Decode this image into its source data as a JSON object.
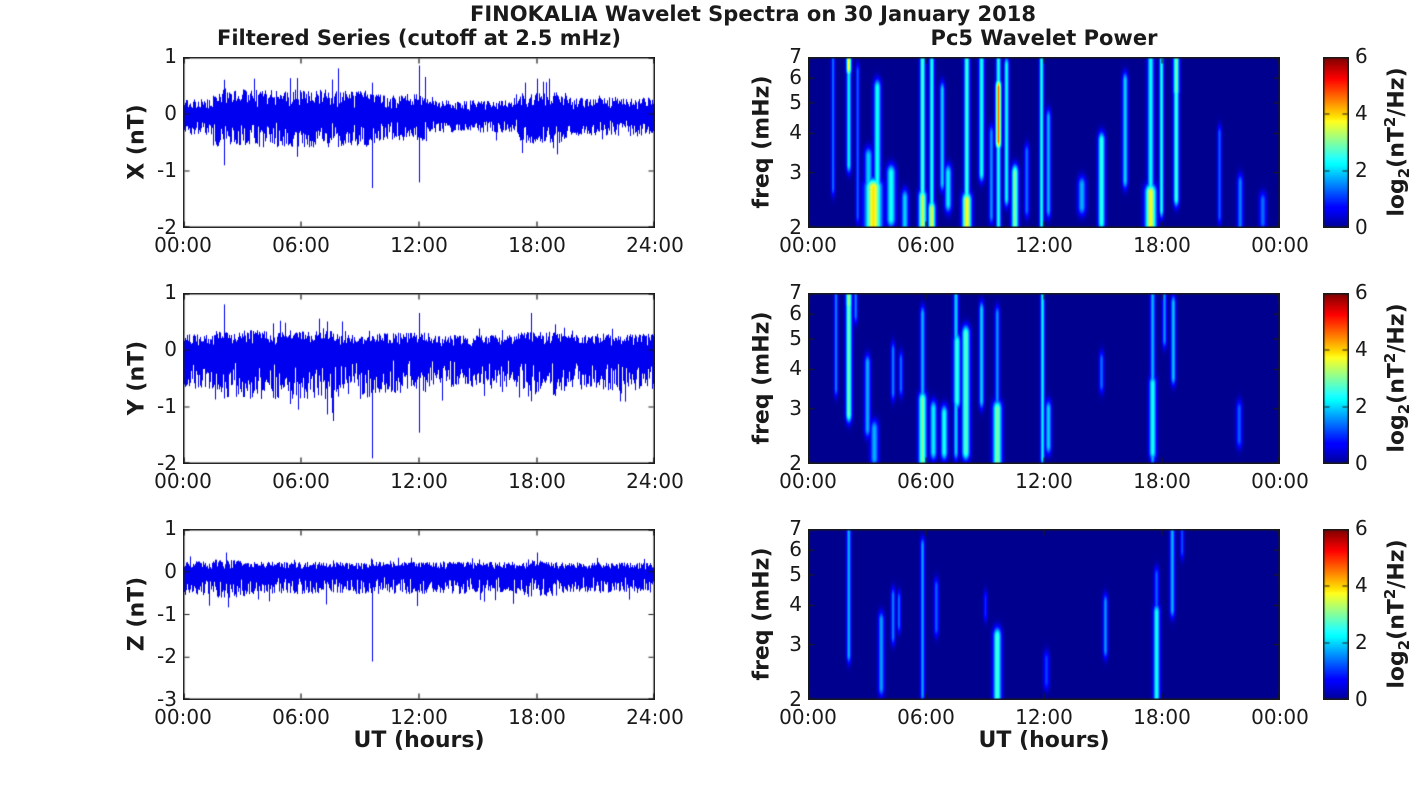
{
  "title": "FINOKALIA Wavelet Spectra on 30 January 2018",
  "colors": {
    "series_line": "#0000F0",
    "axis": "#1a1a1a",
    "text": "#1a1a1a",
    "background": "#ffffff",
    "heat_background_jet0": "#00008F",
    "colormap": "jet"
  },
  "left_column": {
    "title": "Filtered Series (cutoff at 2.5 mHz)",
    "xlabel": "UT (hours)"
  },
  "right_column": {
    "title": "Pc5 Wavelet Power",
    "xlabel": "UT (hours)",
    "colorbar": {
      "ticks": [
        6,
        4,
        2,
        0
      ],
      "clim": [
        0,
        6
      ]
    },
    "colorbar_label": {
      "pre": "log",
      "sub": "2",
      "mid": "(nT",
      "sup": "2",
      "post": "/Hz)"
    }
  },
  "chart_data": [
    {
      "id": "x_series",
      "type": "line",
      "ylabel": "X (nT)",
      "ylim": [
        -2,
        1
      ],
      "xlim_hours": [
        0,
        24
      ],
      "x_ticks": [
        "00:00",
        "06:00",
        "12:00",
        "18:00",
        "24:00"
      ],
      "y_ticks": [
        1,
        0,
        -1,
        -2
      ],
      "noise": {
        "amp_pos": 0.22,
        "amp_neg": 0.3,
        "envelope": [
          [
            0,
            1.5,
            0.85
          ],
          [
            1.5,
            9.5,
            1.35
          ],
          [
            9.5,
            12.5,
            1.1
          ],
          [
            12.5,
            17,
            0.75
          ],
          [
            17,
            19.5,
            1.2
          ],
          [
            19.5,
            24.01,
            0.9
          ]
        ]
      },
      "spikes": [
        [
          2.1,
          0.6
        ],
        [
          2.1,
          -0.9
        ],
        [
          3.6,
          0.62
        ],
        [
          5.8,
          0.63
        ],
        [
          5.8,
          -0.75
        ],
        [
          7.9,
          0.8
        ],
        [
          9.6,
          0.55
        ],
        [
          9.6,
          -1.3
        ],
        [
          12.0,
          0.85
        ],
        [
          12.0,
          -1.2
        ],
        [
          12.3,
          0.65
        ],
        [
          17.4,
          0.55
        ],
        [
          18.0,
          0.62
        ],
        [
          18.6,
          0.62
        ],
        [
          18.8,
          -0.6
        ]
      ]
    },
    {
      "id": "y_series",
      "type": "line",
      "ylabel": "Y (nT)",
      "ylim": [
        -2,
        1
      ],
      "xlim_hours": [
        0,
        24
      ],
      "x_ticks": [
        "00:00",
        "06:00",
        "12:00",
        "18:00",
        "24:00"
      ],
      "y_ticks": [
        1,
        0,
        -1,
        -2
      ],
      "noise": {
        "amp_pos": 0.2,
        "amp_neg": 0.5,
        "envelope": [
          [
            0,
            1.5,
            0.95
          ],
          [
            1.5,
            9.5,
            1.2
          ],
          [
            9.5,
            12.5,
            1.05
          ],
          [
            12.5,
            17,
            0.9
          ],
          [
            17,
            19,
            1.15
          ],
          [
            19,
            24.01,
            1.0
          ]
        ]
      },
      "spikes": [
        [
          2.1,
          0.8
        ],
        [
          2.1,
          -0.85
        ],
        [
          6.9,
          0.55
        ],
        [
          7.3,
          0.5
        ],
        [
          8.1,
          0.5
        ],
        [
          9.6,
          -1.9
        ],
        [
          12.0,
          0.65
        ],
        [
          12.0,
          -1.45
        ],
        [
          17.7,
          0.65
        ],
        [
          17.7,
          -0.9
        ],
        [
          18.9,
          0.45
        ]
      ]
    },
    {
      "id": "z_series",
      "type": "line",
      "ylabel": "Z (nT)",
      "ylim": [
        -3,
        1
      ],
      "xlim_hours": [
        0,
        24
      ],
      "x_ticks": [
        "00:00",
        "06:00",
        "12:00",
        "18:00",
        "24:00"
      ],
      "y_ticks": [
        1,
        0,
        -1,
        -2,
        -3
      ],
      "noise": {
        "amp_pos": 0.17,
        "amp_neg": 0.38,
        "envelope": [
          [
            0,
            1.5,
            1.0
          ],
          [
            1.5,
            3.2,
            1.15
          ],
          [
            3.2,
            17.3,
            0.95
          ],
          [
            17.3,
            19,
            1.1
          ],
          [
            19,
            24.01,
            0.9
          ]
        ]
      },
      "spikes": [
        [
          2.2,
          0.45
        ],
        [
          3.8,
          -0.65
        ],
        [
          9.6,
          -2.1
        ],
        [
          11.9,
          -0.8
        ],
        [
          15.3,
          -0.7
        ],
        [
          16.8,
          -0.75
        ],
        [
          18.0,
          0.45
        ]
      ]
    },
    {
      "id": "x_wavelet",
      "type": "heatmap",
      "ylabel": "freq (mHz)",
      "f_range": [
        2,
        7
      ],
      "yscale": "log2",
      "clim": [
        0,
        6
      ],
      "colormap": "jet",
      "x_ticks": [
        "00:00",
        "06:00",
        "12:00",
        "18:00",
        "00:00"
      ],
      "y_ticks": [
        7,
        6,
        5,
        4,
        3,
        2
      ],
      "features": [
        [
          1.25,
          2.7,
          7.0,
          1.4,
          2
        ],
        [
          2.05,
          3.2,
          6.6,
          2.2,
          2.5
        ],
        [
          2.05,
          6.5,
          7.0,
          3.8,
          2.5
        ],
        [
          2.5,
          2.2,
          6.3,
          1.3,
          2
        ],
        [
          3.3,
          2.0,
          2.7,
          3.9,
          8
        ],
        [
          3.5,
          2.6,
          5.6,
          2.4,
          3.5
        ],
        [
          3.05,
          2.1,
          3.4,
          2.0,
          4
        ],
        [
          4.2,
          2.15,
          3.0,
          2.4,
          4.5
        ],
        [
          4.9,
          2.05,
          2.5,
          2.0,
          3.5
        ],
        [
          5.8,
          2.0,
          7.0,
          2.6,
          2.8
        ],
        [
          5.8,
          2.0,
          2.5,
          3.4,
          4
        ],
        [
          6.27,
          2.0,
          6.8,
          2.4,
          2.5
        ],
        [
          6.27,
          2.0,
          2.3,
          3.6,
          3.5
        ],
        [
          6.8,
          2.8,
          5.5,
          2.0,
          2.5
        ],
        [
          7.1,
          2.4,
          3.0,
          2.2,
          3.5
        ],
        [
          8.05,
          2.0,
          7.0,
          2.6,
          2.8
        ],
        [
          8.05,
          2.0,
          2.45,
          3.8,
          4.5
        ],
        [
          8.8,
          3.0,
          7.0,
          2.4,
          2.8
        ],
        [
          9.3,
          2.2,
          4.0,
          1.6,
          2.5
        ],
        [
          9.66,
          3.8,
          5.6,
          4.6,
          2.8
        ],
        [
          9.66,
          2.0,
          7.0,
          2.4,
          2.5
        ],
        [
          10.07,
          2.5,
          6.6,
          2.3,
          2.5
        ],
        [
          10.5,
          2.05,
          3.0,
          3.0,
          3.5
        ],
        [
          11.1,
          2.3,
          3.5,
          1.4,
          2.5
        ],
        [
          11.85,
          2.05,
          7.0,
          2.4,
          2.2
        ],
        [
          12.2,
          2.3,
          4.5,
          1.8,
          2.5
        ],
        [
          13.9,
          2.35,
          2.75,
          1.8,
          4
        ],
        [
          14.9,
          2.1,
          3.8,
          2.6,
          3.5
        ],
        [
          16.1,
          2.85,
          5.9,
          2.0,
          2.8
        ],
        [
          17.4,
          2.05,
          2.6,
          3.7,
          5.5
        ],
        [
          17.4,
          2.0,
          7.0,
          2.3,
          3.2
        ],
        [
          17.95,
          2.3,
          7.0,
          2.4,
          2.2
        ],
        [
          18.7,
          2.5,
          7.0,
          2.6,
          2.8
        ],
        [
          18.7,
          5.5,
          7.0,
          2.9,
          3
        ],
        [
          20.9,
          2.2,
          4.0,
          1.3,
          2.2
        ],
        [
          21.95,
          2.05,
          2.8,
          1.5,
          3
        ],
        [
          23.1,
          2.1,
          2.45,
          1.4,
          3.5
        ]
      ]
    },
    {
      "id": "y_wavelet",
      "type": "heatmap",
      "ylabel": "freq (mHz)",
      "f_range": [
        2,
        7
      ],
      "yscale": "log2",
      "clim": [
        0,
        6
      ],
      "colormap": "jet",
      "x_ticks": [
        "00:00",
        "06:00",
        "12:00",
        "18:00",
        "00:00"
      ],
      "y_ticks": [
        7,
        6,
        5,
        4,
        3,
        2
      ],
      "features": [
        [
          1.4,
          3.5,
          7.0,
          1.5,
          2
        ],
        [
          2.05,
          2.9,
          7.0,
          2.9,
          3
        ],
        [
          2.05,
          6.5,
          7.0,
          3.2,
          3
        ],
        [
          2.4,
          6.0,
          7.0,
          1.5,
          2
        ],
        [
          3.0,
          2.6,
          4.2,
          1.8,
          3
        ],
        [
          3.35,
          2.1,
          2.6,
          1.8,
          4
        ],
        [
          4.3,
          3.4,
          4.6,
          1.5,
          2.2
        ],
        [
          4.7,
          3.5,
          4.3,
          1.4,
          2.2
        ],
        [
          5.8,
          2.0,
          3.2,
          3.0,
          4
        ],
        [
          5.8,
          3.0,
          6.0,
          1.8,
          2.5
        ],
        [
          6.35,
          2.2,
          3.0,
          2.2,
          3.5
        ],
        [
          6.9,
          2.2,
          2.9,
          2.4,
          3.5
        ],
        [
          7.5,
          2.2,
          7.0,
          2.0,
          2.5
        ],
        [
          7.55,
          3.2,
          4.9,
          2.6,
          3.5
        ],
        [
          8.0,
          2.2,
          5.2,
          2.8,
          4
        ],
        [
          8.8,
          3.2,
          6.2,
          2.0,
          2.5
        ],
        [
          9.6,
          2.0,
          3.0,
          3.0,
          4.5
        ],
        [
          9.6,
          3.0,
          6.0,
          1.6,
          2.5
        ],
        [
          11.9,
          2.1,
          7.0,
          2.2,
          2.2
        ],
        [
          12.2,
          2.3,
          3.0,
          2.0,
          3
        ],
        [
          14.9,
          3.6,
          4.3,
          1.4,
          2.5
        ],
        [
          17.5,
          2.2,
          3.6,
          2.4,
          3.5
        ],
        [
          17.5,
          2.1,
          7.0,
          1.8,
          2.5
        ],
        [
          18.1,
          5.0,
          7.0,
          1.6,
          2.2
        ],
        [
          18.55,
          3.8,
          6.5,
          1.9,
          2.5
        ],
        [
          21.9,
          2.4,
          3.0,
          1.3,
          3
        ]
      ]
    },
    {
      "id": "z_wavelet",
      "type": "heatmap",
      "ylabel": "freq (mHz)",
      "f_range": [
        2,
        7
      ],
      "yscale": "log2",
      "clim": [
        0,
        6
      ],
      "colormap": "jet",
      "x_ticks": [
        "00:00",
        "06:00",
        "12:00",
        "18:00",
        "00:00"
      ],
      "y_ticks": [
        7,
        6,
        5,
        4,
        3,
        2
      ],
      "features": [
        [
          2.05,
          2.8,
          7.0,
          1.8,
          2.2
        ],
        [
          3.7,
          2.2,
          3.6,
          1.7,
          3
        ],
        [
          4.3,
          3.2,
          4.3,
          1.5,
          2.2
        ],
        [
          4.6,
          3.5,
          4.2,
          1.4,
          2
        ],
        [
          5.8,
          2.1,
          6.2,
          1.7,
          2.2
        ],
        [
          6.5,
          3.4,
          4.6,
          1.3,
          2.5
        ],
        [
          9.0,
          3.8,
          4.2,
          1.0,
          2
        ],
        [
          9.6,
          2.05,
          3.2,
          2.7,
          4
        ],
        [
          12.1,
          2.3,
          2.7,
          1.1,
          3
        ],
        [
          15.1,
          2.9,
          4.1,
          1.6,
          2.5
        ],
        [
          17.7,
          2.05,
          3.8,
          2.4,
          3.2
        ],
        [
          17.7,
          3.8,
          5.0,
          1.3,
          2.5
        ],
        [
          18.5,
          3.9,
          7.0,
          1.8,
          2.5
        ],
        [
          19.0,
          6.0,
          7.0,
          1.2,
          2
        ]
      ]
    }
  ]
}
